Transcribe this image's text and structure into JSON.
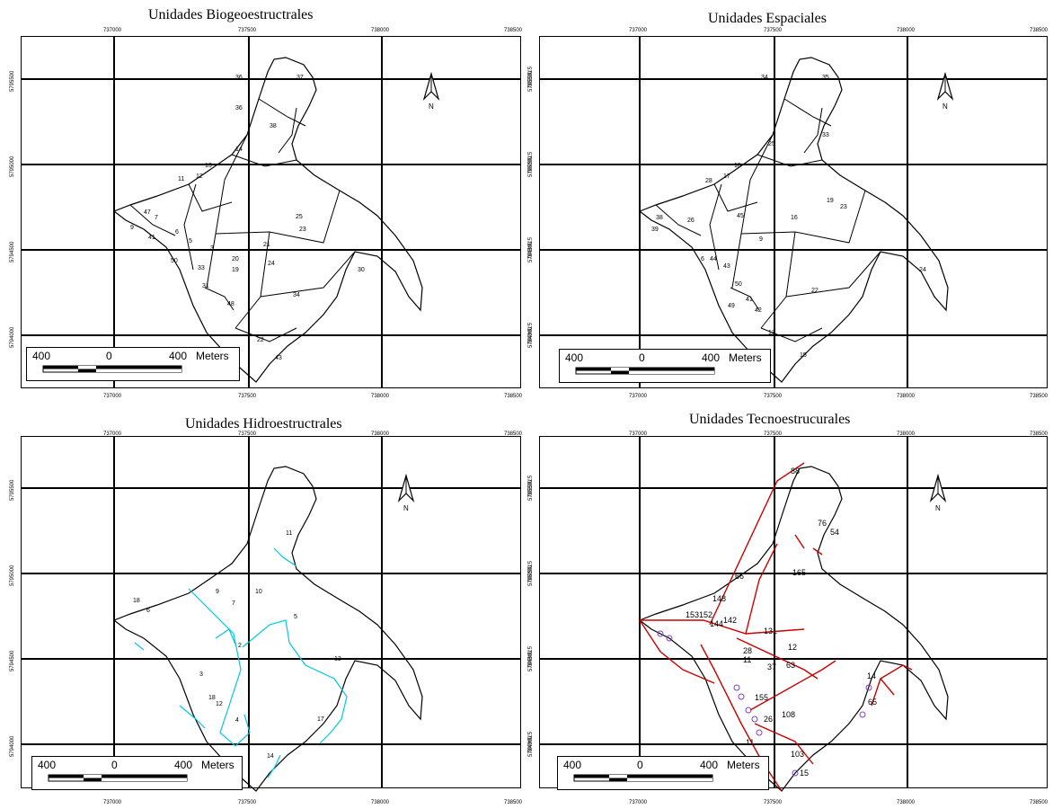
{
  "panels": [
    {
      "title": "Unidades Biogeoestructrales"
    },
    {
      "title": "Unidades Espaciales"
    },
    {
      "title": "Unidades Hidroestructrales"
    },
    {
      "title": "Unidades Tecnoestrucurales"
    }
  ],
  "axes": {
    "x_ticks": [
      "737000",
      "737500",
      "738000",
      "738500"
    ],
    "y_ticks": [
      "5795500",
      "5795000",
      "5794500",
      "5794000"
    ]
  },
  "scalebar": {
    "left": "400",
    "mid": "0",
    "right": "400",
    "unit": "Meters"
  },
  "north": {
    "label": "N",
    "icon": "north-arrow-icon"
  },
  "colors": {
    "boundary": "#000000",
    "hydro": "#00c8e6",
    "roads": "#cc0000",
    "points": "#8040c0"
  },
  "labels": {
    "bio": [
      "36",
      "37",
      "36",
      "38",
      "14",
      "13",
      "11",
      "12",
      "7",
      "6",
      "9",
      "41",
      "47",
      "5",
      "3",
      "50",
      "25",
      "23",
      "21",
      "20",
      "24",
      "19",
      "30",
      "34",
      "22",
      "43",
      "48",
      "31",
      "33"
    ],
    "esp": [
      "34",
      "35",
      "25",
      "33",
      "18",
      "17",
      "28",
      "19",
      "23",
      "26",
      "38",
      "39",
      "45",
      "16",
      "9",
      "6",
      "44",
      "43",
      "49",
      "24",
      "22",
      "41",
      "42",
      "13",
      "15",
      "50"
    ],
    "hid": [
      "11",
      "9",
      "7",
      "10",
      "5",
      "2",
      "13",
      "18",
      "6",
      "3",
      "18",
      "12",
      "4",
      "17",
      "14"
    ],
    "tec": [
      "88",
      "76",
      "54",
      "165",
      "66",
      "148",
      "153152",
      "144",
      "142",
      "131",
      "11",
      "28",
      "12",
      "63",
      "37",
      "155",
      "108",
      "26",
      "11",
      "65",
      "14",
      "103",
      "15"
    ]
  }
}
